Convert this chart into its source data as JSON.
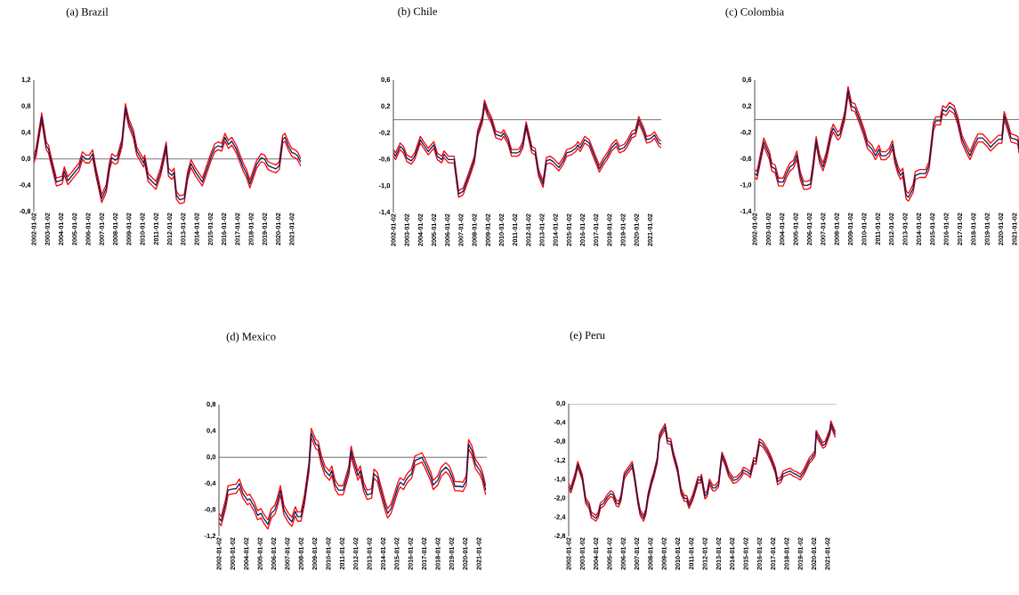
{
  "chart_data": [
    {
      "type": "line",
      "title": "(a) Brazil",
      "xlim": [
        "2002-01-02",
        "2021-09-01"
      ],
      "ylim": [
        -0.8,
        1.2
      ],
      "xticks": [
        "2002-01-02",
        "2003-01-02",
        "2004-01-02",
        "2005-01-02",
        "2006-01-02",
        "2007-01-02",
        "2008-01-02",
        "2009-01-02",
        "2010-01-02",
        "2011-01-02",
        "2012-01-02",
        "2013-01-02",
        "2014-01-02",
        "2015-01-02",
        "2016-01-02",
        "2017-01-02",
        "2018-01-02",
        "2019-01-02",
        "2020-01-02",
        "2021-01-02"
      ],
      "yticks": [
        {
          "value": -0.8,
          "label": "-0,8"
        },
        {
          "value": -0.4,
          "label": "-0,4"
        },
        {
          "value": 0.0,
          "label": "0,0"
        },
        {
          "value": 0.4,
          "label": "0,4"
        },
        {
          "value": 0.8,
          "label": "0,8"
        },
        {
          "value": 1.2,
          "label": "1,2"
        }
      ],
      "ref_lines": [
        {
          "axis": "y",
          "value": 0,
          "color": "#595959"
        }
      ],
      "x": [
        "2002-01-02",
        "2002-03",
        "2002-08",
        "2002-12",
        "2003-02",
        "2003-04",
        "2003-09",
        "2004-02",
        "2004-04",
        "2004-07",
        "2004-10",
        "2005-05",
        "2005-08",
        "2005-11",
        "2006-02",
        "2006-05",
        "2006-08",
        "2007-01",
        "2007-05",
        "2007-08",
        "2007-10",
        "2008-01",
        "2008-03",
        "2008-07",
        "2008-10",
        "2009-01",
        "2009-05",
        "2009-08",
        "2009-12",
        "2010-02",
        "2010-03",
        "2010-06",
        "2010-10",
        "2011-01",
        "2011-05",
        "2011-07",
        "2011-10",
        "2011-12",
        "2012-03",
        "2012-05",
        "2012-07",
        "2012-10",
        "2013-02",
        "2013-05",
        "2013-08",
        "2013-12",
        "2014-06",
        "2014-10",
        "2015-02",
        "2015-05",
        "2015-08",
        "2015-11",
        "2016-02",
        "2016-05",
        "2016-08",
        "2016-12",
        "2017-06",
        "2017-09",
        "2017-12",
        "2018-06",
        "2018-10",
        "2019-01",
        "2019-04",
        "2019-08",
        "2019-11",
        "2020-02",
        "2020-05",
        "2020-07",
        "2020-10",
        "2021-01",
        "2021-04",
        "2021-06",
        "2021-09"
      ],
      "series": [
        {
          "color": "#ff0000",
          "values": [
            0.06,
            0.16,
            0.7,
            0.26,
            0.21,
            0.06,
            -0.29,
            -0.26,
            -0.12,
            -0.27,
            -0.21,
            -0.06,
            0.11,
            0.06,
            0.06,
            0.14,
            -0.14,
            -0.54,
            -0.39,
            -0.04,
            0.08,
            0.04,
            0.06,
            0.31,
            0.84,
            0.61,
            0.44,
            0.18,
            0.06,
            0.0,
            0.06,
            -0.22,
            -0.29,
            -0.34,
            -0.14,
            0.01,
            0.26,
            -0.14,
            -0.19,
            -0.14,
            -0.49,
            -0.56,
            -0.54,
            -0.19,
            -0.01,
            -0.14,
            -0.29,
            -0.09,
            0.11,
            0.23,
            0.26,
            0.24,
            0.39,
            0.28,
            0.33,
            0.21,
            -0.06,
            -0.16,
            -0.32,
            -0.02,
            0.08,
            0.06,
            -0.04,
            -0.07,
            -0.09,
            -0.04,
            0.36,
            0.39,
            0.26,
            0.16,
            0.14,
            0.11,
            0.01
          ]
        },
        {
          "color": "#ff0000",
          "values": [
            -0.06,
            0.04,
            0.58,
            0.14,
            0.09,
            -0.06,
            -0.41,
            -0.38,
            -0.24,
            -0.39,
            -0.33,
            -0.18,
            -0.01,
            -0.06,
            -0.06,
            0.02,
            -0.26,
            -0.66,
            -0.51,
            -0.16,
            -0.04,
            -0.08,
            -0.06,
            0.19,
            0.72,
            0.49,
            0.32,
            0.06,
            -0.06,
            -0.12,
            -0.06,
            -0.34,
            -0.41,
            -0.46,
            -0.26,
            -0.11,
            0.14,
            -0.26,
            -0.31,
            -0.26,
            -0.61,
            -0.68,
            -0.66,
            -0.31,
            -0.13,
            -0.26,
            -0.41,
            -0.21,
            -0.01,
            0.11,
            0.14,
            0.12,
            0.27,
            0.16,
            0.21,
            0.09,
            -0.18,
            -0.28,
            -0.44,
            -0.14,
            -0.04,
            -0.06,
            -0.16,
            -0.19,
            -0.21,
            -0.16,
            0.24,
            0.27,
            0.14,
            0.04,
            0.02,
            -0.01,
            -0.11
          ]
        },
        {
          "color": "#002060",
          "values": [
            0.0,
            0.1,
            0.64,
            0.2,
            0.15,
            0.0,
            -0.35,
            -0.32,
            -0.18,
            -0.33,
            -0.27,
            -0.12,
            0.05,
            0.0,
            0.0,
            0.08,
            -0.2,
            -0.6,
            -0.45,
            -0.1,
            0.02,
            -0.02,
            0.0,
            0.25,
            0.78,
            0.55,
            0.38,
            0.12,
            0.0,
            -0.06,
            0.0,
            -0.28,
            -0.35,
            -0.4,
            -0.2,
            -0.05,
            0.2,
            -0.2,
            -0.25,
            -0.2,
            -0.55,
            -0.62,
            -0.6,
            -0.25,
            -0.07,
            -0.2,
            -0.35,
            -0.15,
            0.05,
            0.17,
            0.2,
            0.18,
            0.33,
            0.22,
            0.27,
            0.15,
            -0.12,
            -0.22,
            -0.38,
            -0.08,
            0.02,
            0.0,
            -0.1,
            -0.13,
            -0.15,
            -0.1,
            0.3,
            0.33,
            0.2,
            0.1,
            0.08,
            0.05,
            -0.05
          ]
        }
      ]
    },
    {
      "type": "line",
      "title": "(b) Chile",
      "xlim": [
        "2002-01-02",
        "2021-11-01"
      ],
      "ylim": [
        -1.4,
        0.6
      ],
      "xticks": [
        "2002-01-02",
        "2003-01-02",
        "2004-01-02",
        "2005-01-02",
        "2006-01-02",
        "2007-01-02",
        "2008-01-02",
        "2009-01-02",
        "2010-01-02",
        "2011-01-02",
        "2012-01-02",
        "2013-01-02",
        "2014-01-02",
        "2015-01-02",
        "2016-01-02",
        "2017-01-02",
        "2018-01-02",
        "2019-01-02",
        "2020-01-02",
        "2021-01-02"
      ],
      "yticks": [
        {
          "value": -1.4,
          "label": "-1,4"
        },
        {
          "value": -1.0,
          "label": "-1,0"
        },
        {
          "value": -0.6,
          "label": "-0,6"
        },
        {
          "value": -0.2,
          "label": "-0,2"
        },
        {
          "value": 0.2,
          "label": "0,2"
        },
        {
          "value": 0.6,
          "label": "0,6"
        }
      ],
      "ref_lines": [
        {
          "axis": "y",
          "value": 0,
          "color": "#595959"
        }
      ],
      "x": [
        "2002-01-02",
        "2002-03",
        "2002-07",
        "2002-10",
        "2003-01",
        "2003-05",
        "2003-08",
        "2004-01",
        "2004-04",
        "2004-08",
        "2005-01",
        "2005-04",
        "2005-08",
        "2005-10",
        "2006-02",
        "2006-07",
        "2006-11",
        "2007-03",
        "2007-08",
        "2008-01",
        "2008-04",
        "2008-08",
        "2008-10",
        "2009-01",
        "2009-04",
        "2009-08",
        "2010-01",
        "2010-03",
        "2010-07",
        "2010-10",
        "2011-03",
        "2011-05",
        "2011-08",
        "2011-11",
        "2012-02",
        "2012-04",
        "2012-07",
        "2012-10",
        "2013-02",
        "2013-05",
        "2013-08",
        "2013-11",
        "2014-04",
        "2014-08",
        "2014-11",
        "2015-03",
        "2015-07",
        "2015-09",
        "2015-11",
        "2016-03",
        "2016-07",
        "2016-10",
        "2017-02",
        "2017-04",
        "2017-08",
        "2017-11",
        "2018-03",
        "2018-07",
        "2018-10",
        "2019-02",
        "2019-05",
        "2019-09",
        "2019-12",
        "2020-03",
        "2020-07",
        "2020-10",
        "2021-02",
        "2021-05",
        "2021-09",
        "2021-11"
      ],
      "series": [
        {
          "color": "#ff0000",
          "values": [
            -0.45,
            -0.5,
            -0.35,
            -0.4,
            -0.53,
            -0.57,
            -0.5,
            -0.25,
            -0.33,
            -0.43,
            -0.33,
            -0.5,
            -0.55,
            -0.47,
            -0.55,
            -0.55,
            -1.07,
            -1.03,
            -0.8,
            -0.55,
            -0.15,
            0.05,
            0.3,
            0.15,
            0.05,
            -0.17,
            -0.2,
            -0.15,
            -0.27,
            -0.45,
            -0.45,
            -0.43,
            -0.33,
            -0.03,
            -0.25,
            -0.4,
            -0.43,
            -0.75,
            -0.92,
            -0.57,
            -0.55,
            -0.58,
            -0.67,
            -0.57,
            -0.45,
            -0.43,
            -0.38,
            -0.33,
            -0.38,
            -0.25,
            -0.3,
            -0.43,
            -0.6,
            -0.69,
            -0.57,
            -0.5,
            -0.37,
            -0.3,
            -0.4,
            -0.37,
            -0.3,
            -0.17,
            -0.15,
            0.05,
            -0.1,
            -0.25,
            -0.23,
            -0.18,
            -0.3,
            -0.32
          ]
        },
        {
          "color": "#ff0000",
          "values": [
            -0.55,
            -0.6,
            -0.45,
            -0.5,
            -0.63,
            -0.67,
            -0.6,
            -0.35,
            -0.43,
            -0.53,
            -0.43,
            -0.6,
            -0.65,
            -0.57,
            -0.65,
            -0.65,
            -1.17,
            -1.13,
            -0.9,
            -0.65,
            -0.25,
            -0.05,
            0.2,
            0.05,
            -0.05,
            -0.27,
            -0.3,
            -0.25,
            -0.37,
            -0.55,
            -0.55,
            -0.53,
            -0.43,
            -0.13,
            -0.35,
            -0.5,
            -0.53,
            -0.85,
            -1.02,
            -0.67,
            -0.65,
            -0.68,
            -0.77,
            -0.67,
            -0.55,
            -0.53,
            -0.48,
            -0.43,
            -0.48,
            -0.35,
            -0.4,
            -0.53,
            -0.7,
            -0.79,
            -0.67,
            -0.6,
            -0.47,
            -0.4,
            -0.5,
            -0.47,
            -0.4,
            -0.27,
            -0.25,
            -0.05,
            -0.2,
            -0.35,
            -0.33,
            -0.28,
            -0.4,
            -0.42
          ]
        },
        {
          "color": "#002060",
          "values": [
            -0.5,
            -0.55,
            -0.4,
            -0.45,
            -0.58,
            -0.62,
            -0.55,
            -0.3,
            -0.38,
            -0.48,
            -0.38,
            -0.55,
            -0.6,
            -0.52,
            -0.6,
            -0.6,
            -1.12,
            -1.08,
            -0.85,
            -0.6,
            -0.2,
            0.0,
            0.25,
            0.1,
            0.0,
            -0.22,
            -0.25,
            -0.2,
            -0.32,
            -0.5,
            -0.5,
            -0.48,
            -0.38,
            -0.08,
            -0.3,
            -0.45,
            -0.48,
            -0.8,
            -0.97,
            -0.62,
            -0.6,
            -0.63,
            -0.72,
            -0.62,
            -0.5,
            -0.48,
            -0.43,
            -0.38,
            -0.43,
            -0.3,
            -0.35,
            -0.48,
            -0.65,
            -0.74,
            -0.62,
            -0.55,
            -0.42,
            -0.35,
            -0.45,
            -0.42,
            -0.35,
            -0.22,
            -0.2,
            0.0,
            -0.15,
            -0.3,
            -0.28,
            -0.23,
            -0.35,
            -0.37
          ]
        }
      ]
    },
    {
      "type": "line",
      "title": "(c) Colombia",
      "xlim": [
        "2002-01-02",
        "2021-05-01"
      ],
      "ylim": [
        -1.4,
        0.6
      ],
      "xticks": [
        "2002-01-02",
        "2003-01-02",
        "2004-01-02",
        "2005-01-02",
        "2006-01-02",
        "2007-01-02",
        "2008-01-02",
        "2009-01-02",
        "2010-01-02",
        "2011-01-02",
        "2012-01-02",
        "2013-01-02",
        "2014-01-02",
        "2015-01-02",
        "2016-01-02",
        "2017-01-02",
        "2018-01-02",
        "2019-01-02",
        "2020-01-02",
        "2021-01-02"
      ],
      "yticks": [
        {
          "value": -1.4,
          "label": "-1,4"
        },
        {
          "value": -1.0,
          "label": "-1,0"
        },
        {
          "value": -0.6,
          "label": "-0,6"
        },
        {
          "value": -0.2,
          "label": "-0,2"
        },
        {
          "value": 0.2,
          "label": "0,2"
        },
        {
          "value": 0.6,
          "label": "0,6"
        }
      ],
      "ref_lines": [
        {
          "axis": "y",
          "value": 0,
          "color": "#595959"
        }
      ],
      "x": [
        "2002-01-02",
        "2002-03",
        "2002-09",
        "2003-02",
        "2003-04",
        "2003-07",
        "2003-10",
        "2004-02",
        "2004-05",
        "2004-08",
        "2004-11",
        "2005-02",
        "2005-05",
        "2005-08",
        "2005-11",
        "2006-02",
        "2006-04",
        "2006-07",
        "2006-10",
        "2007-01",
        "2007-04",
        "2007-08",
        "2007-10",
        "2008-02",
        "2008-04",
        "2008-08",
        "2008-11",
        "2009-02",
        "2009-05",
        "2009-09",
        "2010-01",
        "2010-04",
        "2010-08",
        "2010-11",
        "2011-02",
        "2011-04",
        "2011-08",
        "2011-11",
        "2012-02",
        "2012-04",
        "2012-07",
        "2012-09",
        "2012-11",
        "2013-02",
        "2013-04",
        "2013-08",
        "2013-10",
        "2014-02",
        "2014-07",
        "2014-10",
        "2015-02",
        "2015-04",
        "2015-08",
        "2015-10",
        "2016-01",
        "2016-04",
        "2016-08",
        "2016-11",
        "2017-03",
        "2017-07",
        "2017-10",
        "2018-02",
        "2018-05",
        "2018-09",
        "2019-01",
        "2019-04",
        "2019-08",
        "2019-11",
        "2020-02",
        "2020-04",
        "2020-07",
        "2020-10",
        "2021-02",
        "2021-04",
        "2021-05"
      ],
      "series": [
        {
          "color": "#ff0000",
          "values": [
            -0.76,
            -0.79,
            -0.28,
            -0.49,
            -0.66,
            -0.69,
            -0.89,
            -0.89,
            -0.76,
            -0.66,
            -0.62,
            -0.48,
            -0.79,
            -0.94,
            -0.94,
            -0.92,
            -0.69,
            -0.26,
            -0.54,
            -0.66,
            -0.49,
            -0.16,
            -0.07,
            -0.19,
            -0.16,
            0.11,
            0.5,
            0.26,
            0.24,
            0.06,
            -0.14,
            -0.32,
            -0.39,
            -0.49,
            -0.39,
            -0.49,
            -0.49,
            -0.44,
            -0.32,
            -0.54,
            -0.72,
            -0.79,
            -0.74,
            -1.09,
            -1.12,
            -0.99,
            -0.79,
            -0.76,
            -0.76,
            -0.64,
            -0.04,
            0.04,
            0.04,
            0.21,
            0.18,
            0.26,
            0.21,
            0.06,
            -0.24,
            -0.39,
            -0.49,
            -0.32,
            -0.22,
            -0.22,
            -0.29,
            -0.36,
            -0.29,
            -0.24,
            -0.24,
            0.12,
            -0.04,
            -0.22,
            -0.24,
            -0.26,
            -0.39
          ]
        },
        {
          "color": "#ff0000",
          "values": [
            -0.88,
            -0.91,
            -0.4,
            -0.61,
            -0.78,
            -0.81,
            -1.01,
            -1.01,
            -0.88,
            -0.78,
            -0.74,
            -0.6,
            -0.91,
            -1.06,
            -1.06,
            -1.04,
            -0.81,
            -0.38,
            -0.66,
            -0.78,
            -0.61,
            -0.28,
            -0.19,
            -0.31,
            -0.28,
            -0.01,
            0.38,
            0.14,
            0.12,
            -0.06,
            -0.26,
            -0.44,
            -0.51,
            -0.61,
            -0.51,
            -0.61,
            -0.61,
            -0.56,
            -0.44,
            -0.66,
            -0.84,
            -0.91,
            -0.86,
            -1.21,
            -1.24,
            -1.11,
            -0.91,
            -0.88,
            -0.88,
            -0.76,
            -0.16,
            -0.08,
            -0.08,
            0.09,
            0.06,
            0.14,
            0.09,
            -0.06,
            -0.36,
            -0.51,
            -0.61,
            -0.44,
            -0.34,
            -0.34,
            -0.41,
            -0.48,
            -0.41,
            -0.36,
            -0.36,
            0.0,
            -0.16,
            -0.34,
            -0.36,
            -0.38,
            -0.51
          ]
        },
        {
          "color": "#002060",
          "values": [
            -0.82,
            -0.85,
            -0.34,
            -0.55,
            -0.72,
            -0.75,
            -0.95,
            -0.95,
            -0.82,
            -0.72,
            -0.68,
            -0.54,
            -0.85,
            -1.0,
            -1.0,
            -0.98,
            -0.75,
            -0.32,
            -0.6,
            -0.72,
            -0.55,
            -0.22,
            -0.13,
            -0.25,
            -0.22,
            0.05,
            0.44,
            0.2,
            0.18,
            0.0,
            -0.2,
            -0.38,
            -0.45,
            -0.55,
            -0.45,
            -0.55,
            -0.55,
            -0.5,
            -0.38,
            -0.6,
            -0.78,
            -0.85,
            -0.8,
            -1.15,
            -1.18,
            -1.05,
            -0.85,
            -0.82,
            -0.82,
            -0.7,
            -0.1,
            -0.02,
            -0.02,
            0.15,
            0.12,
            0.2,
            0.15,
            0.0,
            -0.3,
            -0.45,
            -0.55,
            -0.38,
            -0.28,
            -0.28,
            -0.35,
            -0.42,
            -0.35,
            -0.3,
            -0.3,
            0.06,
            -0.1,
            -0.28,
            -0.3,
            -0.32,
            -0.45
          ]
        }
      ]
    },
    {
      "type": "line",
      "title": "(d) Mexico",
      "xlim": [
        "2002-01-02",
        "2021-08-01"
      ],
      "ylim": [
        -1.2,
        0.8
      ],
      "xticks": [
        "2002-01-02",
        "2003-01-02",
        "2004-01-02",
        "2005-01-02",
        "2006-01-02",
        "2007-01-02",
        "2008-01-02",
        "2009-01-02",
        "2010-01-02",
        "2011-01-02",
        "2012-01-02",
        "2013-01-02",
        "2014-01-02",
        "2015-01-02",
        "2016-01-02",
        "2017-01-02",
        "2018-01-02",
        "2019-01-02",
        "2020-01-02",
        "2021-01-02"
      ],
      "yticks": [
        {
          "value": -1.2,
          "label": "-1,2"
        },
        {
          "value": -0.8,
          "label": "-0,8"
        },
        {
          "value": -0.4,
          "label": "-0,4"
        },
        {
          "value": 0.0,
          "label": "0,0"
        },
        {
          "value": 0.4,
          "label": "0,4"
        },
        {
          "value": 0.8,
          "label": "0,8"
        }
      ],
      "ref_lines": [
        {
          "axis": "y",
          "value": 0,
          "color": "#595959"
        }
      ],
      "x": [
        "2002-01-02",
        "2002-03",
        "2002-07",
        "2002-09",
        "2003-02",
        "2003-04",
        "2003-07",
        "2003-10",
        "2004-02",
        "2004-04",
        "2004-08",
        "2004-11",
        "2005-02",
        "2005-04",
        "2005-08",
        "2005-11",
        "2006-02",
        "2006-04",
        "2006-07",
        "2006-10",
        "2007-02",
        "2007-05",
        "2007-08",
        "2007-10",
        "2008-01",
        "2008-04",
        "2008-08",
        "2008-10",
        "2009-02",
        "2009-04",
        "2009-07",
        "2009-10",
        "2010-02",
        "2010-04",
        "2010-07",
        "2010-10",
        "2011-02",
        "2011-07",
        "2011-09",
        "2011-11",
        "2012-03",
        "2012-05",
        "2012-08",
        "2012-11",
        "2013-03",
        "2013-05",
        "2013-08",
        "2013-11",
        "2014-03",
        "2014-05",
        "2014-08",
        "2014-11",
        "2015-02",
        "2015-04",
        "2015-07",
        "2015-09",
        "2015-11",
        "2016-02",
        "2016-05",
        "2016-09",
        "2016-11",
        "2017-02",
        "2017-07",
        "2017-09",
        "2018-01",
        "2018-04",
        "2018-08",
        "2018-11",
        "2019-02",
        "2019-04",
        "2019-08",
        "2019-11",
        "2020-02",
        "2020-04",
        "2020-07",
        "2020-10",
        "2021-02",
        "2021-04",
        "2021-07"
      ],
      "series": [
        {
          "color": "#ff0000",
          "values": [
            -0.85,
            -0.9,
            -0.63,
            -0.43,
            -0.41,
            -0.41,
            -0.33,
            -0.48,
            -0.58,
            -0.56,
            -0.68,
            -0.81,
            -0.78,
            -0.85,
            -0.95,
            -0.78,
            -0.73,
            -0.63,
            -0.43,
            -0.73,
            -0.85,
            -0.91,
            -0.75,
            -0.83,
            -0.83,
            -0.58,
            -0.08,
            0.44,
            0.27,
            0.25,
            0.02,
            -0.13,
            -0.21,
            -0.13,
            -0.35,
            -0.43,
            -0.43,
            -0.13,
            0.17,
            0.02,
            -0.21,
            -0.13,
            -0.38,
            -0.5,
            -0.48,
            -0.18,
            -0.23,
            -0.43,
            -0.68,
            -0.78,
            -0.71,
            -0.55,
            -0.38,
            -0.31,
            -0.35,
            -0.28,
            -0.23,
            -0.18,
            0.02,
            0.05,
            0.07,
            -0.03,
            -0.23,
            -0.35,
            -0.28,
            -0.15,
            -0.08,
            -0.13,
            -0.25,
            -0.37,
            -0.37,
            -0.38,
            -0.28,
            0.27,
            0.17,
            -0.03,
            -0.13,
            -0.21,
            -0.43
          ]
        },
        {
          "color": "#ff0000",
          "values": [
            -0.99,
            -1.04,
            -0.77,
            -0.57,
            -0.55,
            -0.55,
            -0.47,
            -0.62,
            -0.72,
            -0.7,
            -0.82,
            -0.95,
            -0.92,
            -0.99,
            -1.09,
            -0.92,
            -0.87,
            -0.77,
            -0.57,
            -0.87,
            -0.99,
            -1.05,
            -0.89,
            -0.97,
            -0.97,
            -0.72,
            -0.22,
            0.3,
            0.13,
            0.11,
            -0.12,
            -0.27,
            -0.35,
            -0.27,
            -0.49,
            -0.57,
            -0.57,
            -0.27,
            0.03,
            -0.12,
            -0.35,
            -0.27,
            -0.52,
            -0.64,
            -0.62,
            -0.32,
            -0.37,
            -0.57,
            -0.82,
            -0.92,
            -0.85,
            -0.69,
            -0.52,
            -0.45,
            -0.49,
            -0.42,
            -0.37,
            -0.32,
            -0.12,
            -0.09,
            -0.07,
            -0.17,
            -0.37,
            -0.49,
            -0.42,
            -0.29,
            -0.22,
            -0.27,
            -0.39,
            -0.51,
            -0.51,
            -0.52,
            -0.42,
            0.13,
            0.03,
            -0.17,
            -0.27,
            -0.35,
            -0.57
          ]
        },
        {
          "color": "#002060",
          "values": [
            -0.92,
            -0.97,
            -0.7,
            -0.5,
            -0.48,
            -0.48,
            -0.4,
            -0.55,
            -0.65,
            -0.63,
            -0.75,
            -0.88,
            -0.85,
            -0.92,
            -1.02,
            -0.85,
            -0.8,
            -0.7,
            -0.5,
            -0.8,
            -0.92,
            -0.98,
            -0.82,
            -0.9,
            -0.9,
            -0.65,
            -0.15,
            0.37,
            0.2,
            0.18,
            -0.05,
            -0.2,
            -0.28,
            -0.2,
            -0.42,
            -0.5,
            -0.5,
            -0.2,
            0.1,
            -0.05,
            -0.28,
            -0.2,
            -0.45,
            -0.57,
            -0.55,
            -0.25,
            -0.3,
            -0.5,
            -0.75,
            -0.85,
            -0.78,
            -0.62,
            -0.45,
            -0.38,
            -0.42,
            -0.35,
            -0.3,
            -0.25,
            -0.05,
            -0.02,
            0.0,
            -0.1,
            -0.3,
            -0.42,
            -0.35,
            -0.22,
            -0.15,
            -0.2,
            -0.32,
            -0.44,
            -0.44,
            -0.45,
            -0.35,
            0.2,
            0.1,
            -0.1,
            -0.2,
            -0.28,
            -0.5
          ]
        }
      ]
    },
    {
      "type": "line",
      "title": "(e) Peru",
      "xlim": [
        "2002-01-02",
        "2021-09-01"
      ],
      "ylim": [
        -2.8,
        0.0
      ],
      "xticks": [
        "2002-01-02",
        "2003-01-02",
        "2004-01-02",
        "2005-01-02",
        "2006-01-02",
        "2007-01-02",
        "2008-01-02",
        "2009-01-02",
        "2010-01-02",
        "2011-01-02",
        "2012-01-02",
        "2013-01-02",
        "2014-01-02",
        "2015-01-02",
        "2016-01-02",
        "2017-01-02",
        "2018-01-02",
        "2019-01-02",
        "2020-01-02",
        "2021-01-02"
      ],
      "yticks": [
        {
          "value": -2.8,
          "label": "-2,8"
        },
        {
          "value": -2.4,
          "label": "-2,4"
        },
        {
          "value": -2.0,
          "label": "-2,0"
        },
        {
          "value": -1.6,
          "label": "-1,6"
        },
        {
          "value": -1.2,
          "label": "-1,2"
        },
        {
          "value": -0.8,
          "label": "-0,8"
        },
        {
          "value": -0.4,
          "label": "-0,4"
        },
        {
          "value": 0.0,
          "label": "0,0"
        }
      ],
      "ref_lines": [
        {
          "axis": "y",
          "value": 0,
          "color": "#595959"
        }
      ],
      "x": [
        "2002-01-02",
        "2002-03",
        "2002-07",
        "2002-09",
        "2003-01",
        "2003-04",
        "2003-07",
        "2003-09",
        "2004-01",
        "2004-03",
        "2004-05",
        "2004-08",
        "2004-11",
        "2005-02",
        "2005-04",
        "2005-07",
        "2005-09",
        "2005-11",
        "2006-02",
        "2006-04",
        "2006-07",
        "2006-09",
        "2006-11",
        "2007-02",
        "2007-04",
        "2007-07",
        "2007-09",
        "2007-11",
        "2008-02",
        "2008-04",
        "2008-07",
        "2008-09",
        "2008-11",
        "2009-02",
        "2009-04",
        "2009-07",
        "2009-09",
        "2010-01",
        "2010-04",
        "2010-07",
        "2010-09",
        "2010-11",
        "2011-02",
        "2011-04",
        "2011-07",
        "2011-09",
        "2011-10",
        "2012-01",
        "2012-03",
        "2012-05",
        "2012-08",
        "2012-10",
        "2013-01",
        "2013-04",
        "2013-07",
        "2013-10",
        "2014-02",
        "2014-05",
        "2014-09",
        "2014-11",
        "2015-03",
        "2015-05",
        "2015-08",
        "2015-10",
        "2016-01",
        "2016-04",
        "2016-08",
        "2016-11",
        "2017-03",
        "2017-05",
        "2017-08",
        "2017-10",
        "2018-01",
        "2018-04",
        "2018-07",
        "2018-10",
        "2019-01",
        "2019-04",
        "2019-07",
        "2019-09",
        "2019-11",
        "2020-02",
        "2020-03",
        "2020-07",
        "2020-09",
        "2020-11",
        "2021-03",
        "2021-04",
        "2021-07",
        "2021-08"
      ],
      "series": [
        {
          "color": "#ff0000",
          "values": [
            -1.69,
            -1.76,
            -1.44,
            -1.22,
            -1.49,
            -1.99,
            -2.09,
            -2.29,
            -2.36,
            -2.29,
            -2.09,
            -2.04,
            -1.92,
            -1.84,
            -1.86,
            -2.04,
            -2.06,
            -1.94,
            -1.46,
            -1.39,
            -1.29,
            -1.22,
            -1.49,
            -1.99,
            -2.24,
            -2.36,
            -2.22,
            -1.89,
            -1.59,
            -1.44,
            -1.14,
            -0.64,
            -0.54,
            -0.42,
            -0.72,
            -0.74,
            -0.99,
            -1.34,
            -1.79,
            -1.94,
            -1.94,
            -2.09,
            -1.94,
            -1.79,
            -1.54,
            -1.56,
            -1.49,
            -1.89,
            -1.84,
            -1.59,
            -1.72,
            -1.72,
            -1.64,
            -1.02,
            -1.19,
            -1.42,
            -1.56,
            -1.54,
            -1.44,
            -1.34,
            -1.39,
            -1.44,
            -1.14,
            -1.16,
            -0.74,
            -0.79,
            -0.94,
            -1.09,
            -1.34,
            -1.59,
            -1.54,
            -1.42,
            -1.39,
            -1.36,
            -1.41,
            -1.44,
            -1.49,
            -1.39,
            -1.24,
            -1.14,
            -1.09,
            -0.99,
            -0.56,
            -0.74,
            -0.82,
            -0.79,
            -0.54,
            -0.36,
            -0.54,
            -0.59
          ]
        },
        {
          "color": "#ff0000",
          "values": [
            -1.81,
            -1.88,
            -1.56,
            -1.34,
            -1.61,
            -2.11,
            -2.21,
            -2.41,
            -2.48,
            -2.41,
            -2.21,
            -2.16,
            -2.04,
            -1.96,
            -1.98,
            -2.16,
            -2.18,
            -2.06,
            -1.58,
            -1.51,
            -1.41,
            -1.34,
            -1.61,
            -2.11,
            -2.36,
            -2.48,
            -2.34,
            -2.01,
            -1.71,
            -1.56,
            -1.26,
            -0.76,
            -0.66,
            -0.54,
            -0.84,
            -0.86,
            -1.11,
            -1.46,
            -1.91,
            -2.06,
            -2.06,
            -2.21,
            -2.06,
            -1.91,
            -1.66,
            -1.68,
            -1.61,
            -2.01,
            -1.96,
            -1.71,
            -1.84,
            -1.84,
            -1.76,
            -1.14,
            -1.31,
            -1.54,
            -1.68,
            -1.66,
            -1.56,
            -1.46,
            -1.51,
            -1.56,
            -1.26,
            -1.28,
            -0.86,
            -0.91,
            -1.06,
            -1.21,
            -1.46,
            -1.71,
            -1.66,
            -1.54,
            -1.51,
            -1.48,
            -1.53,
            -1.56,
            -1.61,
            -1.51,
            -1.36,
            -1.26,
            -1.21,
            -1.11,
            -0.68,
            -0.86,
            -0.94,
            -0.91,
            -0.66,
            -0.48,
            -0.66,
            -0.71
          ]
        },
        {
          "color": "#002060",
          "values": [
            -1.75,
            -1.82,
            -1.5,
            -1.28,
            -1.55,
            -2.05,
            -2.15,
            -2.35,
            -2.42,
            -2.35,
            -2.15,
            -2.1,
            -1.98,
            -1.9,
            -1.92,
            -2.1,
            -2.12,
            -2.0,
            -1.52,
            -1.45,
            -1.35,
            -1.28,
            -1.55,
            -2.05,
            -2.3,
            -2.42,
            -2.28,
            -1.95,
            -1.65,
            -1.5,
            -1.2,
            -0.7,
            -0.6,
            -0.48,
            -0.78,
            -0.8,
            -1.05,
            -1.4,
            -1.85,
            -2.0,
            -2.0,
            -2.15,
            -2.0,
            -1.85,
            -1.6,
            -1.62,
            -1.55,
            -1.95,
            -1.9,
            -1.65,
            -1.78,
            -1.78,
            -1.7,
            -1.08,
            -1.25,
            -1.48,
            -1.62,
            -1.6,
            -1.5,
            -1.4,
            -1.45,
            -1.5,
            -1.2,
            -1.22,
            -0.8,
            -0.85,
            -1.0,
            -1.15,
            -1.4,
            -1.65,
            -1.6,
            -1.48,
            -1.45,
            -1.42,
            -1.47,
            -1.5,
            -1.55,
            -1.45,
            -1.3,
            -1.2,
            -1.15,
            -1.05,
            -0.62,
            -0.8,
            -0.88,
            -0.85,
            -0.6,
            -0.42,
            -0.6,
            -0.65
          ]
        }
      ]
    }
  ]
}
